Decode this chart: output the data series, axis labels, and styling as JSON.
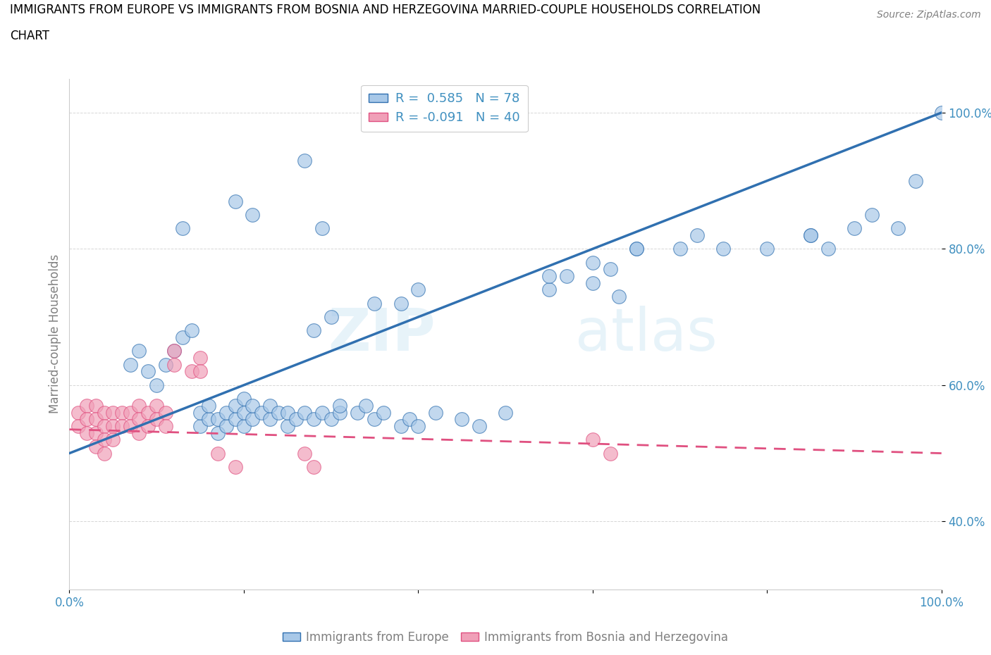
{
  "title_line1": "IMMIGRANTS FROM EUROPE VS IMMIGRANTS FROM BOSNIA AND HERZEGOVINA MARRIED-COUPLE HOUSEHOLDS CORRELATION",
  "title_line2": "CHART",
  "source": "Source: ZipAtlas.com",
  "ylabel": "Married-couple Households",
  "legend_label1": "Immigrants from Europe",
  "legend_label2": "Immigrants from Bosnia and Herzegovina",
  "R1": 0.585,
  "N1": 78,
  "R2": -0.091,
  "N2": 40,
  "color_blue": "#a8c8e8",
  "color_blue_line": "#3070b0",
  "color_pink": "#f0a0b8",
  "color_pink_line": "#e05080",
  "color_blue_text": "#4090c0",
  "watermark": "ZIPatlas",
  "blue_x": [
    0.27,
    0.19,
    0.21,
    0.29,
    0.13,
    0.07,
    0.08,
    0.09,
    0.1,
    0.11,
    0.12,
    0.13,
    0.14,
    0.15,
    0.15,
    0.16,
    0.16,
    0.17,
    0.17,
    0.18,
    0.18,
    0.19,
    0.19,
    0.2,
    0.2,
    0.2,
    0.21,
    0.21,
    0.22,
    0.23,
    0.23,
    0.24,
    0.25,
    0.25,
    0.26,
    0.27,
    0.28,
    0.29,
    0.3,
    0.31,
    0.31,
    0.33,
    0.34,
    0.35,
    0.36,
    0.38,
    0.39,
    0.4,
    0.42,
    0.45,
    0.47,
    0.5,
    0.55,
    0.57,
    0.6,
    0.62,
    0.63,
    0.65,
    0.7,
    0.72,
    0.75,
    0.8,
    0.85,
    0.87,
    0.9,
    0.92,
    0.95,
    0.97,
    1.0,
    0.38,
    0.4,
    0.28,
    0.3,
    0.35,
    0.55,
    0.6,
    0.65,
    0.85
  ],
  "blue_y": [
    0.93,
    0.87,
    0.85,
    0.83,
    0.83,
    0.63,
    0.65,
    0.62,
    0.6,
    0.63,
    0.65,
    0.67,
    0.68,
    0.54,
    0.56,
    0.55,
    0.57,
    0.53,
    0.55,
    0.54,
    0.56,
    0.55,
    0.57,
    0.54,
    0.56,
    0.58,
    0.55,
    0.57,
    0.56,
    0.55,
    0.57,
    0.56,
    0.54,
    0.56,
    0.55,
    0.56,
    0.55,
    0.56,
    0.55,
    0.56,
    0.57,
    0.56,
    0.57,
    0.55,
    0.56,
    0.54,
    0.55,
    0.54,
    0.56,
    0.55,
    0.54,
    0.56,
    0.74,
    0.76,
    0.75,
    0.77,
    0.73,
    0.8,
    0.8,
    0.82,
    0.8,
    0.8,
    0.82,
    0.8,
    0.83,
    0.85,
    0.83,
    0.9,
    1.0,
    0.72,
    0.74,
    0.68,
    0.7,
    0.72,
    0.76,
    0.78,
    0.8,
    0.82
  ],
  "pink_x": [
    0.01,
    0.01,
    0.02,
    0.02,
    0.02,
    0.03,
    0.03,
    0.03,
    0.03,
    0.04,
    0.04,
    0.04,
    0.04,
    0.05,
    0.05,
    0.05,
    0.06,
    0.06,
    0.07,
    0.07,
    0.08,
    0.08,
    0.08,
    0.09,
    0.09,
    0.1,
    0.1,
    0.11,
    0.11,
    0.12,
    0.12,
    0.14,
    0.15,
    0.15,
    0.17,
    0.19,
    0.27,
    0.28,
    0.6,
    0.62
  ],
  "pink_y": [
    0.56,
    0.54,
    0.57,
    0.55,
    0.53,
    0.57,
    0.55,
    0.53,
    0.51,
    0.56,
    0.54,
    0.52,
    0.5,
    0.56,
    0.54,
    0.52,
    0.56,
    0.54,
    0.56,
    0.54,
    0.57,
    0.55,
    0.53,
    0.56,
    0.54,
    0.57,
    0.55,
    0.56,
    0.54,
    0.65,
    0.63,
    0.62,
    0.64,
    0.62,
    0.5,
    0.48,
    0.5,
    0.48,
    0.52,
    0.5
  ],
  "xlim": [
    0.0,
    1.0
  ],
  "ylim": [
    0.3,
    1.05
  ],
  "x_ticks": [
    0.0,
    0.2,
    0.4,
    0.6,
    0.8,
    1.0
  ],
  "x_tick_labels": [
    "0.0%",
    "",
    "",
    "",
    "",
    "100.0%"
  ],
  "y_ticks": [
    0.4,
    0.6,
    0.8,
    1.0
  ],
  "y_tick_labels": [
    "40.0%",
    "60.0%",
    "80.0%",
    "100.0%"
  ]
}
